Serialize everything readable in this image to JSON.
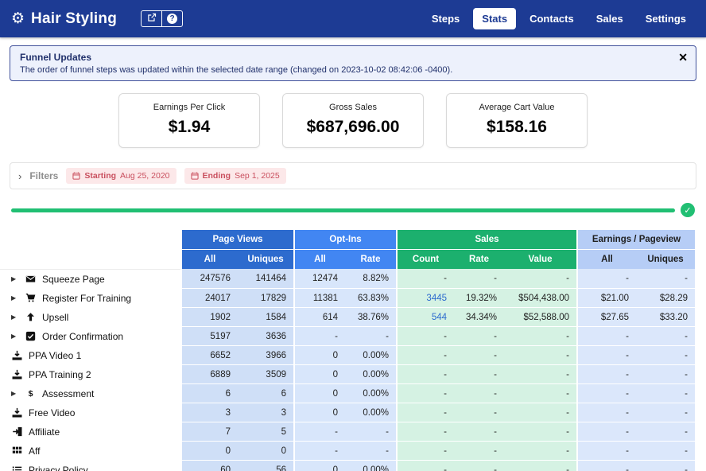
{
  "colors": {
    "navbar": "#1d3b94",
    "pv_header": "#2d6bce",
    "opt_header": "#4286f2",
    "sales_header": "#1cb06e",
    "earn_header": "#b6cdf6",
    "pv_cell": "#cfdff7",
    "opt_cell": "#d8e6fb",
    "sales_cell": "#d5f2e3",
    "earn_cell": "#dbe7fb",
    "pill_bg": "#fce8e9",
    "pill_text": "#c94f5e",
    "progress": "#21bf73",
    "link": "#2d6bce",
    "alert_bg": "#edf1fc",
    "alert_border": "#42529b",
    "alert_text": "#20306b"
  },
  "navbar": {
    "brand": "Hair Styling",
    "items": [
      {
        "label": "Steps",
        "active": false
      },
      {
        "label": "Stats",
        "active": true
      },
      {
        "label": "Contacts",
        "active": false
      },
      {
        "label": "Sales",
        "active": false
      },
      {
        "label": "Settings",
        "active": false
      }
    ]
  },
  "alert": {
    "title": "Funnel Updates",
    "message": "The order of funnel steps was updated within the selected date range (changed on 2023-10-02 08:42:06 -0400).",
    "close_label": "✕"
  },
  "stats": [
    {
      "label": "Earnings Per Click",
      "value": "$1.94"
    },
    {
      "label": "Gross Sales",
      "value": "$687,696.00"
    },
    {
      "label": "Average Cart Value",
      "value": "$158.16"
    }
  ],
  "filters": {
    "label": "Filters",
    "badges": [
      {
        "name": "Starting",
        "value": "Aug 25, 2020"
      },
      {
        "name": "Ending",
        "value": "Sep 1, 2025"
      }
    ]
  },
  "progress": {
    "check": "✓"
  },
  "table": {
    "groups": [
      {
        "label": "Page Views",
        "cols": [
          "All",
          "Uniques"
        ]
      },
      {
        "label": "Opt-Ins",
        "cols": [
          "All",
          "Rate"
        ]
      },
      {
        "label": "Sales",
        "cols": [
          "Count",
          "Rate",
          "Value"
        ]
      },
      {
        "label": "Earnings / Pageview",
        "cols": [
          "All",
          "Uniques"
        ]
      }
    ],
    "rows": [
      {
        "icon": "envelope",
        "expandable": true,
        "label": "Squeeze Page",
        "cells": [
          "247576",
          "141464",
          "12474",
          "8.82%",
          "-",
          "-",
          "-",
          "-",
          "-"
        ]
      },
      {
        "icon": "cart",
        "expandable": true,
        "label": "Register For Training",
        "cells": [
          "24017",
          "17829",
          "11381",
          "63.83%",
          "3445",
          "19.32%",
          "$504,438.00",
          "$21.00",
          "$28.29"
        ],
        "linkCells": [
          4
        ]
      },
      {
        "icon": "arrow-up",
        "expandable": true,
        "label": "Upsell",
        "cells": [
          "1902",
          "1584",
          "614",
          "38.76%",
          "544",
          "34.34%",
          "$52,588.00",
          "$27.65",
          "$33.20"
        ],
        "linkCells": [
          4
        ]
      },
      {
        "icon": "check-square",
        "expandable": true,
        "label": "Order Confirmation",
        "cells": [
          "5197",
          "3636",
          "-",
          "-",
          "-",
          "-",
          "-",
          "-",
          "-"
        ]
      },
      {
        "icon": "download",
        "expandable": false,
        "label": "PPA Video 1",
        "cells": [
          "6652",
          "3966",
          "0",
          "0.00%",
          "-",
          "-",
          "-",
          "-",
          "-"
        ]
      },
      {
        "icon": "download",
        "expandable": false,
        "label": "PPA Training 2",
        "cells": [
          "6889",
          "3509",
          "0",
          "0.00%",
          "-",
          "-",
          "-",
          "-",
          "-"
        ]
      },
      {
        "icon": "dollar",
        "expandable": true,
        "label": "Assessment",
        "cells": [
          "6",
          "6",
          "0",
          "0.00%",
          "-",
          "-",
          "-",
          "-",
          "-"
        ]
      },
      {
        "icon": "download",
        "expandable": false,
        "label": "Free Video",
        "cells": [
          "3",
          "3",
          "0",
          "0.00%",
          "-",
          "-",
          "-",
          "-",
          "-"
        ]
      },
      {
        "icon": "sign-in",
        "expandable": false,
        "label": "Affiliate",
        "cells": [
          "7",
          "5",
          "-",
          "-",
          "-",
          "-",
          "-",
          "-",
          "-"
        ]
      },
      {
        "icon": "grid",
        "expandable": false,
        "label": "Aff",
        "cells": [
          "0",
          "0",
          "-",
          "-",
          "-",
          "-",
          "-",
          "-",
          "-"
        ]
      },
      {
        "icon": "list",
        "expandable": false,
        "label": "Privacy Policy",
        "cells": [
          "60",
          "56",
          "0",
          "0.00%",
          "-",
          "-",
          "-",
          "-",
          "-"
        ]
      }
    ]
  }
}
